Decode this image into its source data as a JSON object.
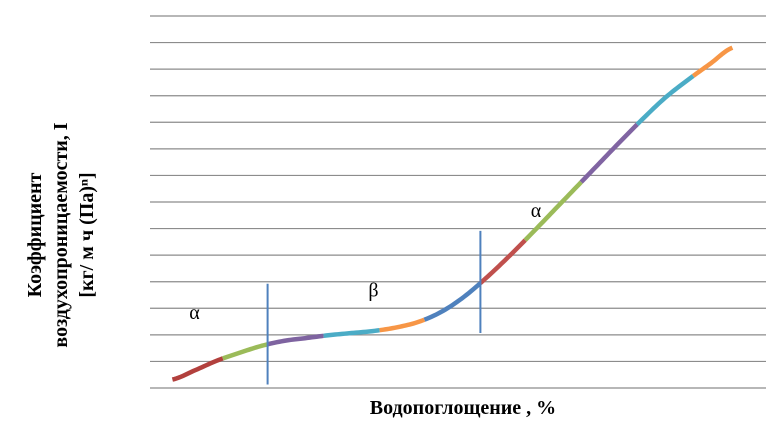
{
  "chart_data": {
    "type": "line",
    "title": "",
    "xlabel": "Водопоглощение , %",
    "ylabel_lines": [
      "Коэффициент",
      "воздухопроницаемости, I",
      "[кг/ м ч (Па)ⁿ]"
    ],
    "grid": true,
    "gridline_count": 15,
    "legend": "none",
    "series": [
      {
        "x": [
          0,
          2,
          4,
          6,
          8,
          10,
          12,
          14,
          16,
          18,
          20,
          22,
          24,
          26,
          28,
          30,
          32,
          34,
          36,
          38,
          40,
          42,
          44,
          46,
          48,
          50
        ],
        "y": [
          0.4,
          1.7,
          3.1,
          4.2,
          5.2,
          5.9,
          6.3,
          6.7,
          7.0,
          7.3,
          7.8,
          8.6,
          10.0,
          12.1,
          14.8,
          17.8,
          21.0,
          24.3,
          27.6,
          30.9,
          34.2,
          37.4,
          40.4,
          42.9,
          45.2,
          47.5
        ],
        "segment_colors": [
          "#b2403d",
          "#9bbb59",
          "#7e63a0",
          "#4bacc6",
          "#f79646",
          "#4f81bd",
          "#c0504d",
          "#9bbb59",
          "#8064a2",
          "#4bacc6",
          "#f79646"
        ],
        "segment_breaks": [
          0,
          4.5,
          8.5,
          13.5,
          18.5,
          22.5,
          27.5,
          31.5,
          36.5,
          41.5,
          46.5,
          50
        ]
      }
    ],
    "xlim": [
      -2,
      53
    ],
    "ylim": [
      -0.8,
      52
    ],
    "boundaries": [
      {
        "x": 8.5,
        "y_from": -0.3,
        "y_to": 14.0,
        "color": "#4f81bd"
      },
      {
        "x": 27.5,
        "y_from": 7.0,
        "y_to": 21.5,
        "color": "#4f81bd"
      }
    ],
    "annotations": [
      {
        "text": "α",
        "x": 1.5,
        "y": 9.0
      },
      {
        "text": "β",
        "x": 17.5,
        "y": 12.2
      },
      {
        "text": "α",
        "x": 32.0,
        "y": 23.5
      }
    ]
  }
}
